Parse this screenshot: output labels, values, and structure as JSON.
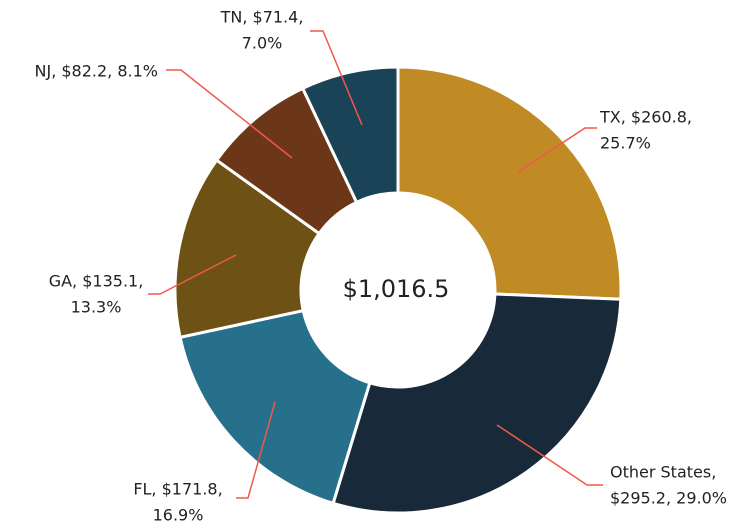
{
  "chart_data": {
    "type": "donut",
    "values": [
      260.8,
      295.2,
      171.8,
      135.1,
      82.2,
      71.4
    ],
    "value_labels": [
      [
        "TX, $260.8,",
        "25.7%"
      ],
      [
        "Other States,",
        "$295.2, 29.0%"
      ],
      [
        "FL, $171.8,",
        "16.9%"
      ],
      [
        "GA, $135.1,",
        "13.3%"
      ],
      [
        "NJ, $82.2, 8.1%"
      ],
      [
        "TN, $71.4,",
        "7.0%"
      ]
    ],
    "colors": [
      "#c08a24",
      "#182a3a",
      "#27708c",
      "#6e5215",
      "#6b3718",
      "#1b4358"
    ],
    "center_label": "$1,016.5"
  }
}
